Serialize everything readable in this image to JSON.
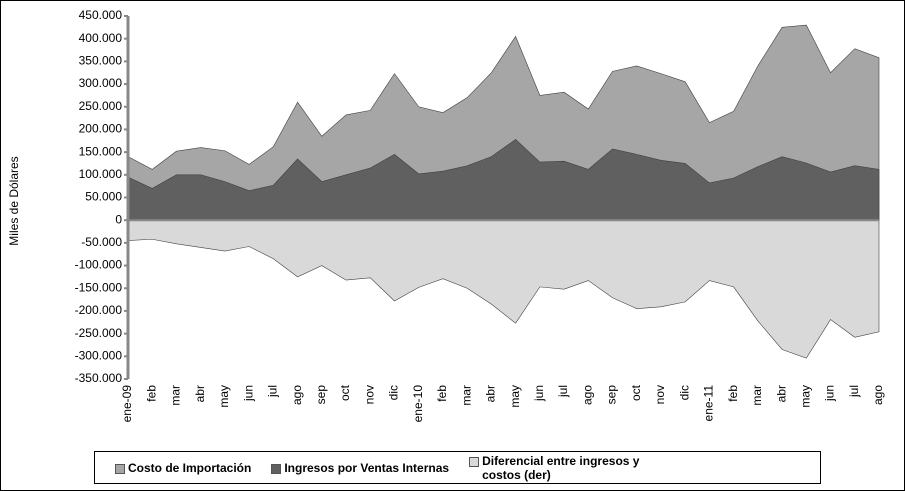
{
  "chart_data": {
    "type": "area",
    "y_label": "Miles de Dólares",
    "categories": [
      "ene-09",
      "feb",
      "mar",
      "abr",
      "may",
      "jun",
      "jul",
      "ago",
      "sep",
      "oct",
      "nov",
      "dic",
      "ene-10",
      "feb",
      "mar",
      "abr",
      "may",
      "jun",
      "jul",
      "ago",
      "sep",
      "oct",
      "nov",
      "dic",
      "ene-11",
      "feb",
      "mar",
      "abr",
      "may",
      "jun",
      "jul",
      "ago"
    ],
    "series": [
      {
        "name": "Costo de Importación",
        "color": "#a6a6a6",
        "values": [
          140000,
          112000,
          152000,
          160000,
          153000,
          123000,
          162000,
          260000,
          185000,
          232000,
          242000,
          323000,
          250000,
          237000,
          270000,
          325000,
          405000,
          275000,
          282000,
          245000,
          328000,
          340000,
          323000,
          305000,
          215000,
          240000,
          340000,
          425000,
          430000,
          325000,
          378000,
          358000
        ]
      },
      {
        "name": "Ingresos por Ventas Internas",
        "color": "#606060",
        "values": [
          95000,
          70000,
          100000,
          100000,
          85000,
          65000,
          77000,
          135000,
          85000,
          100000,
          115000,
          145000,
          102000,
          108000,
          120000,
          140000,
          178000,
          128000,
          130000,
          112000,
          157000,
          145000,
          132000,
          125000,
          82000,
          93000,
          118000,
          140000,
          126000,
          106000,
          120000,
          112000
        ]
      },
      {
        "name": "Diferencial entre ingresos y costos (der)",
        "color": "#d9d9d9",
        "values": [
          -45000,
          -42000,
          -52000,
          -60000,
          -68000,
          -58000,
          -85000,
          -125000,
          -100000,
          -132000,
          -127000,
          -178000,
          -148000,
          -129000,
          -150000,
          -185000,
          -227000,
          -147000,
          -152000,
          -133000,
          -171000,
          -195000,
          -191000,
          -180000,
          -133000,
          -147000,
          -222000,
          -285000,
          -304000,
          -219000,
          -258000,
          -246000
        ]
      }
    ],
    "ylim": [
      -350000,
      450000
    ],
    "yticks": [
      {
        "value": -350000,
        "label": "-350.000"
      },
      {
        "value": -300000,
        "label": "-300.000"
      },
      {
        "value": -250000,
        "label": "-250.000"
      },
      {
        "value": -200000,
        "label": "-200.000"
      },
      {
        "value": -150000,
        "label": "-150.000"
      },
      {
        "value": -100000,
        "label": "-100.000"
      },
      {
        "value": -50000,
        "label": "-50.000"
      },
      0,
      {
        "value": 50000,
        "label": "50.000"
      },
      {
        "value": 100000,
        "label": "100.000"
      },
      {
        "value": 150000,
        "label": "150.000"
      },
      {
        "value": 200000,
        "label": "200.000"
      },
      {
        "value": 250000,
        "label": "250.000"
      },
      {
        "value": 300000,
        "label": "300.000"
      },
      {
        "value": 350000,
        "label": "350.000"
      },
      {
        "value": 400000,
        "label": "400.000"
      },
      {
        "value": 450000,
        "label": "450.000"
      }
    ],
    "legend": "bottom"
  }
}
